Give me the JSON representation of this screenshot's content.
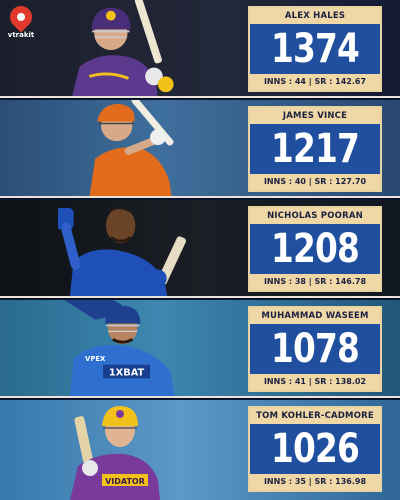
{
  "brand": {
    "logo_text": "vtrakit",
    "accent": "#e03a2e"
  },
  "colors": {
    "card_bg": "#1f4f9e",
    "label_bg": "#f0d7a6",
    "label_text": "#1a2140"
  },
  "players": [
    {
      "name": "ALEX HALES",
      "runs": "1374",
      "stats": "INNS : 44 | SR : 142.67",
      "kit": "#5b3a8e",
      "helmet": "#5b3a8e",
      "sponsor": ""
    },
    {
      "name": "JAMES VINCE",
      "runs": "1217",
      "stats": "INNS : 40 | SR : 127.70",
      "kit": "#e36c1c",
      "helmet": "#e36c1c",
      "sponsor": ""
    },
    {
      "name": "NICHOLAS POORAN",
      "runs": "1208",
      "stats": "INNS : 38 | SR : 146.78",
      "kit": "#1f4fb8",
      "helmet": "#1f4fb8",
      "sponsor": ""
    },
    {
      "name": "MUHAMMAD WASEEM",
      "runs": "1078",
      "stats": "INNS : 41 | SR : 138.02",
      "kit": "#2f6fd0",
      "helmet": "#1f3f8f",
      "sponsor": "1XBAT",
      "sponsor2": "VPEX"
    },
    {
      "name": "TOM KOHLER-CADMORE",
      "runs": "1026",
      "stats": "INNS : 35 | SR : 136.98",
      "kit": "#7a3a9c",
      "helmet": "#f2c21a",
      "sponsor": "VIDATOR"
    }
  ]
}
